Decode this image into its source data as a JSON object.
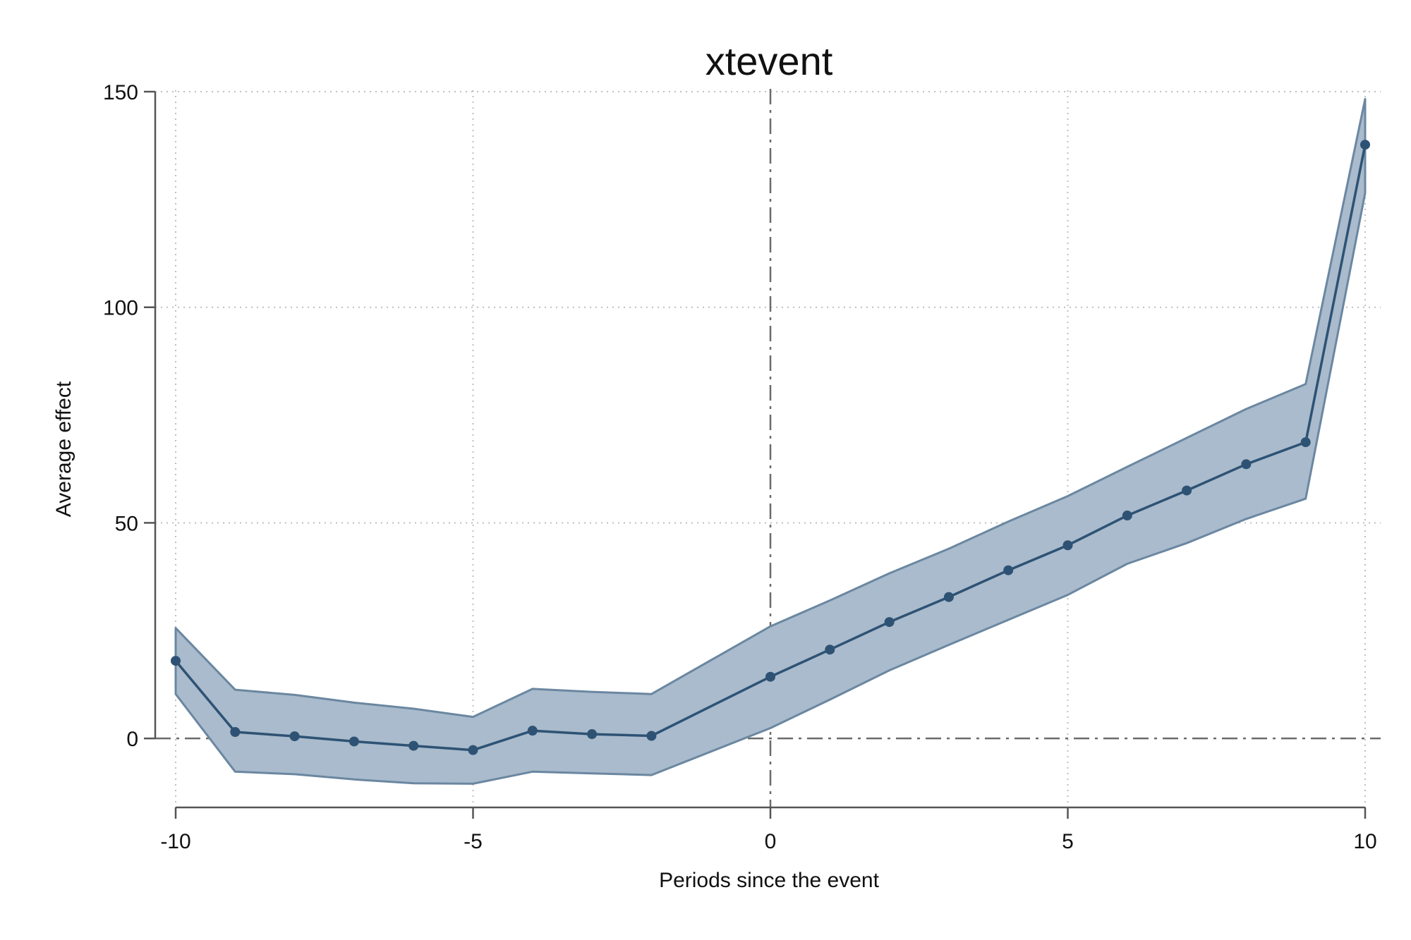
{
  "chart_data": {
    "type": "line",
    "title": "xtevent",
    "xlabel": "Periods since the event",
    "ylabel": "Average effect",
    "xlim": [
      -10,
      10
    ],
    "ylim": [
      -16,
      150
    ],
    "x_ticks": [
      -10,
      -5,
      0,
      5,
      10
    ],
    "y_ticks": [
      0,
      50,
      100,
      150
    ],
    "x_tick_labels": [
      "-10",
      "-5",
      "0",
      "5",
      "10"
    ],
    "y_tick_labels": [
      "0",
      "50",
      "100",
      "150"
    ],
    "grid": true,
    "legend": "none",
    "reference_lines": {
      "x": 0,
      "y": 0
    },
    "x": [
      -10,
      -9,
      -8,
      -7,
      -6,
      -5,
      -4,
      -3,
      -2,
      0,
      1,
      2,
      3,
      4,
      5,
      6,
      7,
      8,
      9,
      10
    ],
    "series": [
      {
        "values": [
          18.0,
          1.5,
          0.5,
          -0.7,
          -1.7,
          -2.7,
          1.8,
          1.0,
          0.6,
          14.3,
          20.6,
          27.0,
          32.8,
          39.0,
          44.8,
          51.7,
          57.5,
          63.6,
          68.7,
          137.7
        ],
        "ci_lower": [
          10.3,
          -7.7,
          -8.3,
          -9.5,
          -10.4,
          -10.5,
          -7.7,
          -8.1,
          -8.5,
          2.4,
          9.0,
          15.8,
          21.7,
          27.5,
          33.3,
          40.5,
          45.3,
          50.9,
          55.6,
          126.5
        ],
        "ci_upper": [
          25.6,
          11.3,
          10.1,
          8.3,
          6.9,
          5.0,
          11.5,
          10.8,
          10.3,
          26.0,
          32.0,
          38.3,
          44.0,
          50.3,
          56.2,
          63.0,
          69.7,
          76.4,
          82.2,
          148.3
        ],
        "color": "#2e5274",
        "band_fill": "#a9bbcc",
        "band_edge": "#6b87a1"
      }
    ]
  }
}
